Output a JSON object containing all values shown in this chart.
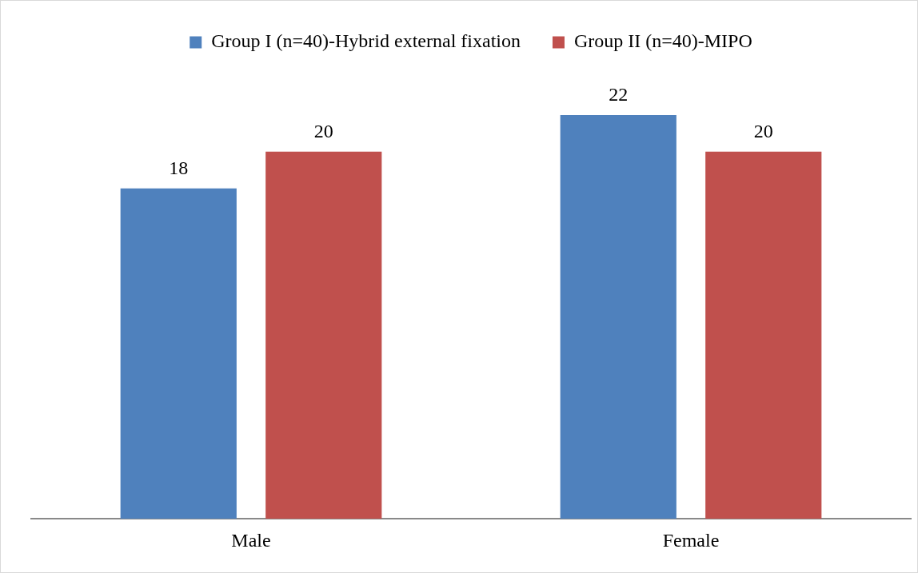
{
  "chart_data": {
    "type": "bar",
    "categories": [
      "Male",
      "Female"
    ],
    "series": [
      {
        "name": "Group I (n=40)-Hybrid external fixation",
        "color": "#4f81bd",
        "values": [
          18,
          22
        ]
      },
      {
        "name": "Group II (n=40)-MIPO",
        "color": "#c0504d",
        "values": [
          20,
          20
        ]
      }
    ],
    "data_labels": true,
    "legend": "top",
    "grid": false,
    "tick_labels": "x"
  }
}
